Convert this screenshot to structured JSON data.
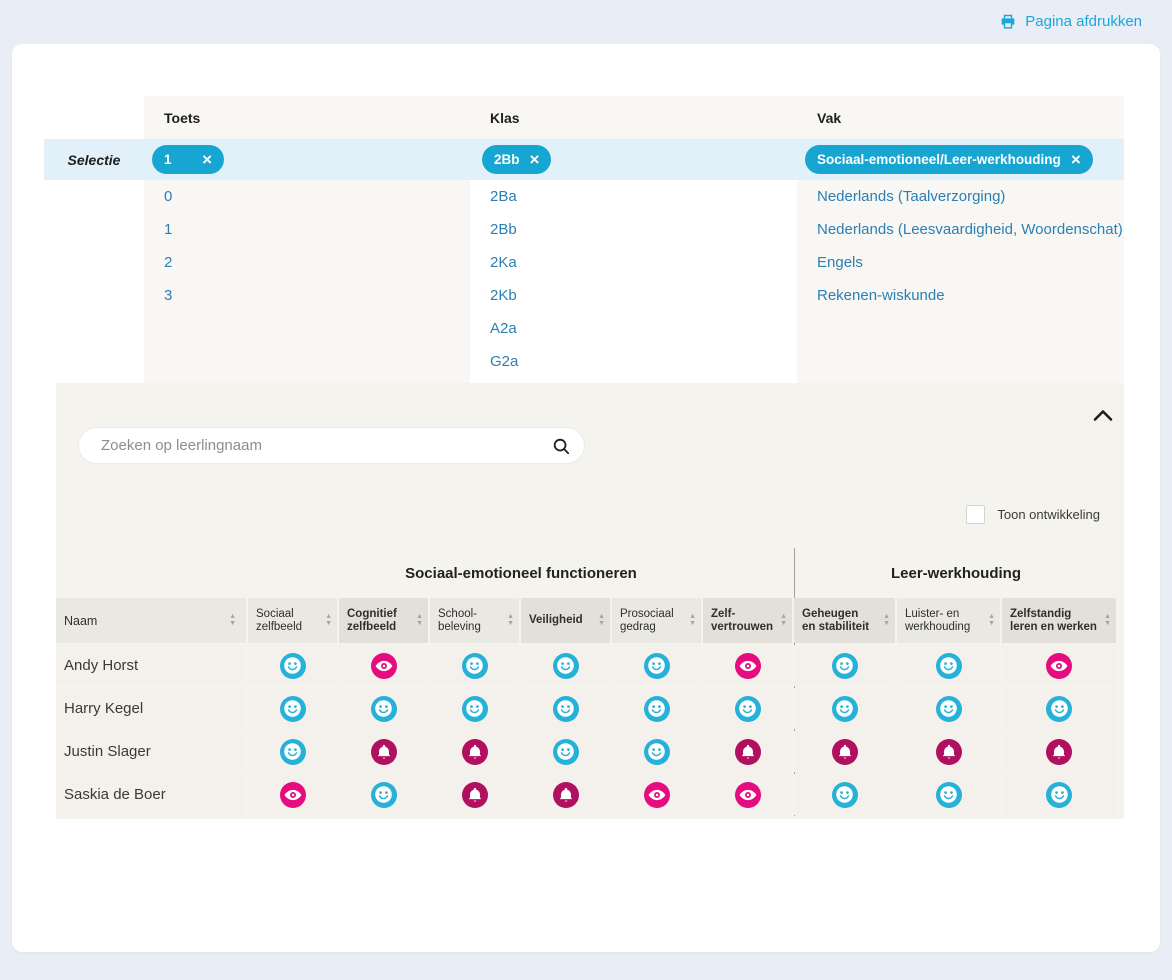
{
  "page": {
    "print_label": "Pagina afdrukken"
  },
  "selection": {
    "row_label": "Selectie",
    "columns": [
      {
        "header": "Toets",
        "selected": "1",
        "options": [
          "0",
          "1",
          "2",
          "3"
        ]
      },
      {
        "header": "Klas",
        "selected": "2Bb",
        "options": [
          "2Ba",
          "2Bb",
          "2Ka",
          "2Kb",
          "A2a",
          "G2a"
        ]
      },
      {
        "header": "Vak",
        "selected": "Sociaal-emotioneel/Leer-werkhouding",
        "options": [
          "Nederlands (Taalverzorging)",
          "Nederlands (Leesvaardigheid, Woordenschat)",
          "Engels",
          "Rekenen-wiskunde"
        ]
      }
    ]
  },
  "search": {
    "placeholder": "Zoeken op leerlingnaam"
  },
  "panel": {
    "toggle_label": "Toon ontwikkeling",
    "toggle_checked": false
  },
  "results": {
    "name_header": "Naam",
    "groups": [
      {
        "label": "Sociaal-emotioneel functioneren"
      },
      {
        "label": "Leer-werkhouding"
      }
    ],
    "columns": [
      {
        "lines": [
          "Sociaal",
          "zelfbeeld"
        ],
        "bold": false
      },
      {
        "lines": [
          "Cognitief",
          "zelfbeeld"
        ],
        "bold": true
      },
      {
        "lines": [
          "School-",
          "beleving"
        ],
        "bold": false
      },
      {
        "lines": [
          "Veiligheid"
        ],
        "bold": true
      },
      {
        "lines": [
          "Prosociaal",
          "gedrag"
        ],
        "bold": false
      },
      {
        "lines": [
          "Zelf-",
          "vertrouwen"
        ],
        "bold": true
      },
      {
        "lines": [
          "Geheugen",
          "en stabiliteit"
        ],
        "bold": true
      },
      {
        "lines": [
          "Luister- en",
          "werkhouding"
        ],
        "bold": false
      },
      {
        "lines": [
          "Zelfstandig",
          "leren en werken"
        ],
        "bold": true
      }
    ],
    "rows": [
      {
        "name": "Andy Horst",
        "cells": [
          "smiley",
          "eye",
          "smiley",
          "smiley",
          "smiley",
          "eye",
          "smiley",
          "smiley",
          "eye"
        ]
      },
      {
        "name": "Harry Kegel",
        "cells": [
          "smiley",
          "smiley",
          "smiley",
          "smiley",
          "smiley",
          "smiley",
          "smiley",
          "smiley",
          "smiley"
        ]
      },
      {
        "name": "Justin Slager",
        "cells": [
          "smiley",
          "bell",
          "bell",
          "smiley",
          "smiley",
          "bell",
          "bell",
          "bell",
          "bell"
        ]
      },
      {
        "name": "Saskia de Boer",
        "cells": [
          "eye",
          "smiley",
          "bell",
          "bell",
          "eye",
          "eye",
          "smiley",
          "smiley",
          "smiley"
        ]
      }
    ]
  },
  "colors": {
    "accent_cyan": "#17a6d2",
    "link_blue": "#2b7fb3",
    "print_link": "#1ba7da",
    "selection_row_bg": "#e2f1f9",
    "panel_bg": "#f5f3ee",
    "header_cell_bg": "#eae8e3",
    "header_cell_emphasis_bg": "#e3e0da",
    "body_cell_bg": "#f4f1ec",
    "icon_smiley": "#26b1d9",
    "icon_eye": "#e60b7e",
    "icon_bell": "#b0105f",
    "page_bg": "#e9eef6"
  }
}
